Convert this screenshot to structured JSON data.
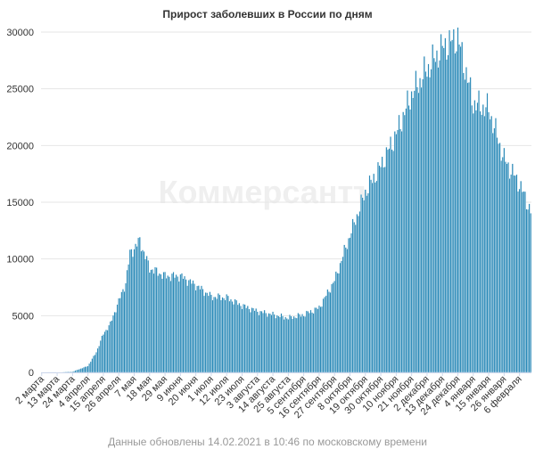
{
  "watermark": "Коммерсантъ",
  "footer": "Данные обновлены 14.02.2021 в 10:46 по московскому времени",
  "colors": {
    "bar": "#2b8ab8",
    "grid": "#e6e6e6"
  },
  "chart_data": {
    "type": "bar",
    "title": "Прирост заболевших в России по дням",
    "xlabel": "",
    "ylabel": "",
    "ylim": [
      0,
      30000
    ],
    "yticks": [
      0,
      5000,
      10000,
      15000,
      20000,
      25000,
      30000
    ],
    "grid": true,
    "legend": "none",
    "x_start": "2020-03-02",
    "x_end": "2021-02-14",
    "xtick_labels": [
      "2 марта",
      "13 марта",
      "24 марта",
      "4 апреля",
      "15 апреля",
      "26 апреля",
      "7 мая",
      "18 мая",
      "29 мая",
      "9 июня",
      "20 июня",
      "1 июля",
      "12 июля",
      "23 июля",
      "3 августа",
      "14 августа",
      "25 августа",
      "5 сентября",
      "16 сентября",
      "27 сентября",
      "8 октября",
      "19 октября",
      "30 октября",
      "10 ноября",
      "21 ноября",
      "2 декабря",
      "13 декабря",
      "24 декабря",
      "4 января",
      "15 января",
      "26 января",
      "6 февраля"
    ],
    "series": [
      {
        "keypoints": [
          [
            "2020-03-02",
            1
          ],
          [
            "2020-03-13",
            14
          ],
          [
            "2020-03-24",
            70
          ],
          [
            "2020-04-04",
            580
          ],
          [
            "2020-04-10",
            1800
          ],
          [
            "2020-04-15",
            3400
          ],
          [
            "2020-04-20",
            4300
          ],
          [
            "2020-04-26",
            6300
          ],
          [
            "2020-05-01",
            7900
          ],
          [
            "2020-05-04",
            10500
          ],
          [
            "2020-05-11",
            11600
          ],
          [
            "2020-05-18",
            9200
          ],
          [
            "2020-05-29",
            8500
          ],
          [
            "2020-06-09",
            8500
          ],
          [
            "2020-06-20",
            7700
          ],
          [
            "2020-07-01",
            6700
          ],
          [
            "2020-07-12",
            6600
          ],
          [
            "2020-07-23",
            5900
          ],
          [
            "2020-08-03",
            5400
          ],
          [
            "2020-08-14",
            5100
          ],
          [
            "2020-08-25",
            4800
          ],
          [
            "2020-09-05",
            5100
          ],
          [
            "2020-09-16",
            5700
          ],
          [
            "2020-09-27",
            8100
          ],
          [
            "2020-10-08",
            12100
          ],
          [
            "2020-10-19",
            15900
          ],
          [
            "2020-10-30",
            18200
          ],
          [
            "2020-11-10",
            21000
          ],
          [
            "2020-11-21",
            24500
          ],
          [
            "2020-12-02",
            26700
          ],
          [
            "2020-12-13",
            28600
          ],
          [
            "2020-12-24",
            29500
          ],
          [
            "2021-01-04",
            23700
          ],
          [
            "2021-01-15",
            23200
          ],
          [
            "2021-01-26",
            18800
          ],
          [
            "2021-02-06",
            16600
          ],
          [
            "2021-02-14",
            14200
          ]
        ]
      }
    ]
  }
}
